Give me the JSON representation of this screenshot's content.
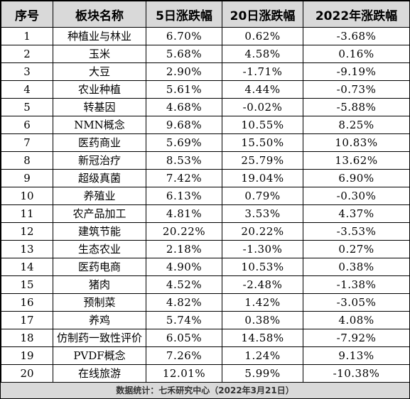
{
  "table": {
    "headers": [
      "序号",
      "板块名称",
      "5日涨跌幅",
      "20日涨跌幅",
      "2022年涨跌幅"
    ],
    "rows": [
      [
        "1",
        "种植业与林业",
        "6.70%",
        "0.62%",
        "-3.68%"
      ],
      [
        "2",
        "玉米",
        "5.68%",
        "4.58%",
        "0.16%"
      ],
      [
        "3",
        "大豆",
        "2.90%",
        "-1.71%",
        "-9.19%"
      ],
      [
        "4",
        "农业种植",
        "5.61%",
        "4.44%",
        "-0.73%"
      ],
      [
        "5",
        "转基因",
        "4.68%",
        "-0.02%",
        "-5.88%"
      ],
      [
        "6",
        "NMN概念",
        "9.68%",
        "10.55%",
        "8.25%"
      ],
      [
        "7",
        "医药商业",
        "5.69%",
        "15.50%",
        "10.83%"
      ],
      [
        "8",
        "新冠治疗",
        "8.53%",
        "25.79%",
        "13.62%"
      ],
      [
        "9",
        "超级真菌",
        "7.42%",
        "19.04%",
        "6.90%"
      ],
      [
        "10",
        "养殖业",
        "6.13%",
        "0.79%",
        "-0.30%"
      ],
      [
        "11",
        "农产品加工",
        "4.81%",
        "3.53%",
        "4.37%"
      ],
      [
        "12",
        "建筑节能",
        "20.22%",
        "20.22%",
        "-3.53%"
      ],
      [
        "13",
        "生态农业",
        "2.18%",
        "-1.30%",
        "0.27%"
      ],
      [
        "14",
        "医药电商",
        "4.90%",
        "10.53%",
        "0.38%"
      ],
      [
        "15",
        "猪肉",
        "4.52%",
        "-2.48%",
        "-1.38%"
      ],
      [
        "16",
        "预制菜",
        "4.82%",
        "1.42%",
        "-3.05%"
      ],
      [
        "17",
        "养鸡",
        "5.74%",
        "0.38%",
        "4.08%"
      ],
      [
        "18",
        "仿制药一致性评价",
        "6.05%",
        "14.58%",
        "-7.92%"
      ],
      [
        "19",
        "PVDF概念",
        "7.26%",
        "1.24%",
        "9.13%"
      ],
      [
        "20",
        "在线旅游",
        "12.01%",
        "5.99%",
        "-10.38%"
      ]
    ]
  },
  "footer": {
    "text": "数据统计：七禾研究中心（2022年3月21日）"
  }
}
